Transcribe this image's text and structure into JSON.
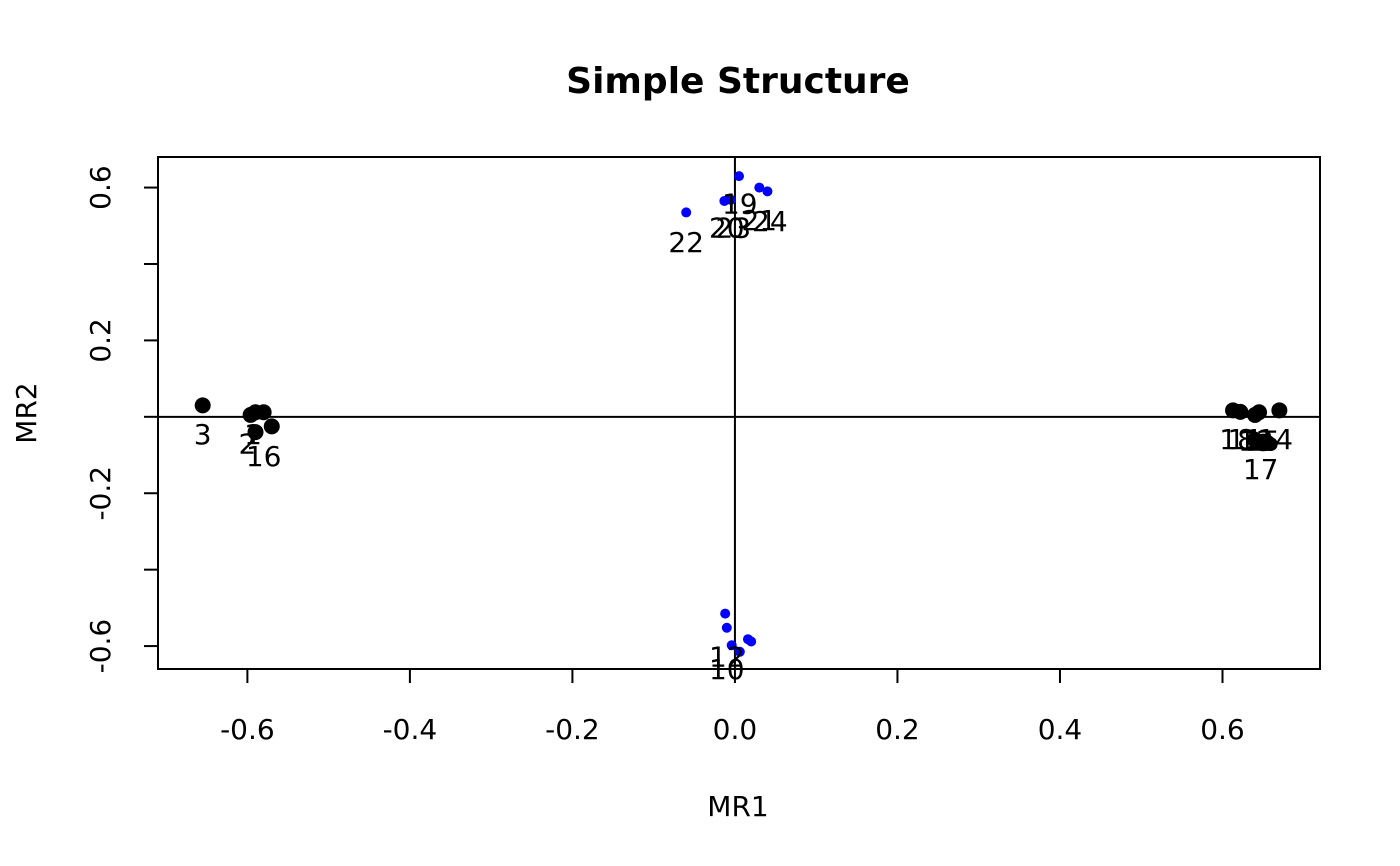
{
  "chart_data": {
    "type": "scatter",
    "title": "Simple Structure",
    "xlabel": "MR1",
    "ylabel": "MR2",
    "xlim": [
      -0.71,
      0.72
    ],
    "ylim": [
      -0.66,
      0.68
    ],
    "x_ticks": [
      -0.6,
      -0.4,
      -0.2,
      0.0,
      0.2,
      0.4,
      0.6
    ],
    "x_tick_labels": [
      "-0.6",
      "-0.4",
      "-0.2",
      "0.0",
      "0.2",
      "0.4",
      "0.6"
    ],
    "y_ticks": [
      -0.6,
      -0.4,
      -0.2,
      0.0,
      0.2,
      0.4,
      0.6
    ],
    "y_tick_labels": [
      "-0.6",
      "",
      "-0.2",
      "",
      "0.2",
      "",
      "0.6"
    ],
    "reference_lines": {
      "x": 0,
      "y": 0
    },
    "grid": false,
    "legend": "none",
    "series": [
      {
        "marker": "large-black-dot",
        "color": "#000000",
        "points": [
          {
            "x": -0.655,
            "y": 0.03
          },
          {
            "x": -0.596,
            "y": 0.005
          },
          {
            "x": -0.59,
            "y": 0.012
          },
          {
            "x": -0.58,
            "y": 0.012
          },
          {
            "x": -0.57,
            "y": -0.025
          },
          {
            "x": -0.59,
            "y": -0.04
          },
          {
            "x": 0.613,
            "y": 0.017
          },
          {
            "x": 0.622,
            "y": 0.013
          },
          {
            "x": 0.64,
            "y": 0.005
          },
          {
            "x": 0.645,
            "y": 0.012
          },
          {
            "x": 0.67,
            "y": 0.017
          },
          {
            "x": 0.64,
            "y": -0.06
          },
          {
            "x": 0.65,
            "y": -0.065
          },
          {
            "x": 0.655,
            "y": -0.068
          }
        ]
      },
      {
        "marker": "small-blue-dot",
        "color": "#0000ff",
        "points": [
          {
            "x": 0.005,
            "y": 0.63
          },
          {
            "x": 0.03,
            "y": 0.6
          },
          {
            "x": 0.04,
            "y": 0.59
          },
          {
            "x": -0.013,
            "y": 0.565
          },
          {
            "x": -0.005,
            "y": 0.568
          },
          {
            "x": -0.06,
            "y": 0.535
          },
          {
            "x": -0.012,
            "y": -0.515
          },
          {
            "x": -0.01,
            "y": -0.552
          },
          {
            "x": 0.016,
            "y": -0.582
          },
          {
            "x": 0.02,
            "y": -0.588
          },
          {
            "x": -0.004,
            "y": -0.598
          },
          {
            "x": 0.006,
            "y": -0.615
          }
        ]
      }
    ],
    "point_labels": [
      {
        "text": "3",
        "x": -0.655,
        "y": -0.045
      },
      {
        "text": "2",
        "x": -0.6,
        "y": -0.07
      },
      {
        "text": "1",
        "x": -0.593,
        "y": -0.045
      },
      {
        "text": "16",
        "x": -0.58,
        "y": -0.102
      },
      {
        "text": "19",
        "x": 0.006,
        "y": 0.558
      },
      {
        "text": "20",
        "x": -0.01,
        "y": 0.495
      },
      {
        "text": "23",
        "x": -0.002,
        "y": 0.495
      },
      {
        "text": "21",
        "x": 0.03,
        "y": 0.515
      },
      {
        "text": "24",
        "x": 0.043,
        "y": 0.512
      },
      {
        "text": "22",
        "x": -0.06,
        "y": 0.458
      },
      {
        "text": "12",
        "x": -0.01,
        "y": -0.627
      },
      {
        "text": "10",
        "x": -0.01,
        "y": -0.66
      },
      {
        "text": "18",
        "x": 0.618,
        "y": -0.058
      },
      {
        "text": "11",
        "x": 0.628,
        "y": -0.058
      },
      {
        "text": "13",
        "x": 0.641,
        "y": -0.062
      },
      {
        "text": "15",
        "x": 0.649,
        "y": -0.062
      },
      {
        "text": "14",
        "x": 0.665,
        "y": -0.058
      },
      {
        "text": "17",
        "x": 0.647,
        "y": -0.137
      }
    ]
  }
}
